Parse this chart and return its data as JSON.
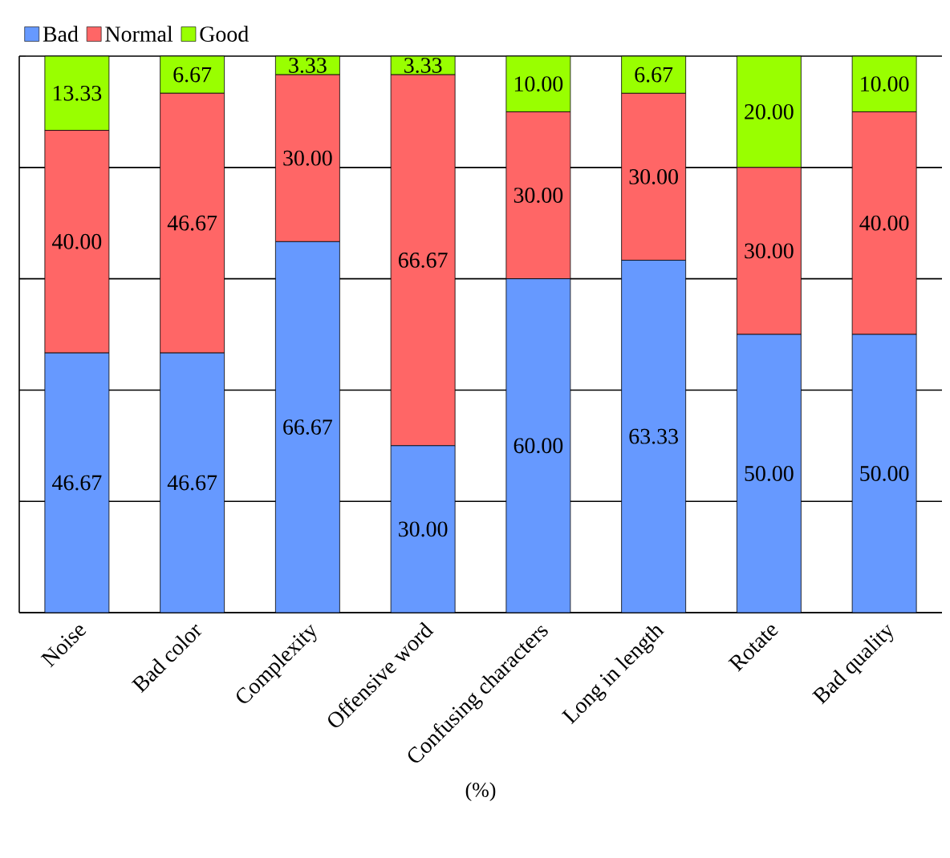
{
  "chart_data": {
    "type": "bar",
    "stacked": true,
    "xlabel": "(%)",
    "categories": [
      "Noise",
      "Bad color",
      "Complexity",
      "Offensive word",
      "Confusing characters",
      "Long in length",
      "Rotate",
      "Bad quality"
    ],
    "series": [
      {
        "name": "Bad",
        "color": "#6699ff",
        "values": [
          46.67,
          46.67,
          66.67,
          30.0,
          60.0,
          63.33,
          50.0,
          50.0
        ],
        "value_labels": [
          "46.67",
          "46.67",
          "66.67",
          "30.00",
          "60.00",
          "63.33",
          "50.00",
          "50.00"
        ]
      },
      {
        "name": "Normal",
        "color": "#ff6666",
        "values": [
          40.0,
          46.67,
          30.0,
          66.67,
          30.0,
          30.0,
          30.0,
          40.0
        ],
        "value_labels": [
          "40.00",
          "46.67",
          "30.00",
          "66.67",
          "30.00",
          "30.00",
          "30.00",
          "40.00"
        ]
      },
      {
        "name": "Good",
        "color": "#99ff00",
        "values": [
          13.33,
          6.67,
          3.33,
          3.33,
          10.0,
          6.67,
          20.0,
          10.0
        ],
        "value_labels": [
          "13.33",
          "6.67",
          "3.33",
          "3.33",
          "10.00",
          "6.67",
          "20.00",
          "10.00"
        ]
      }
    ],
    "tick_labels": "x",
    "grid": "y",
    "legend": "top left"
  }
}
